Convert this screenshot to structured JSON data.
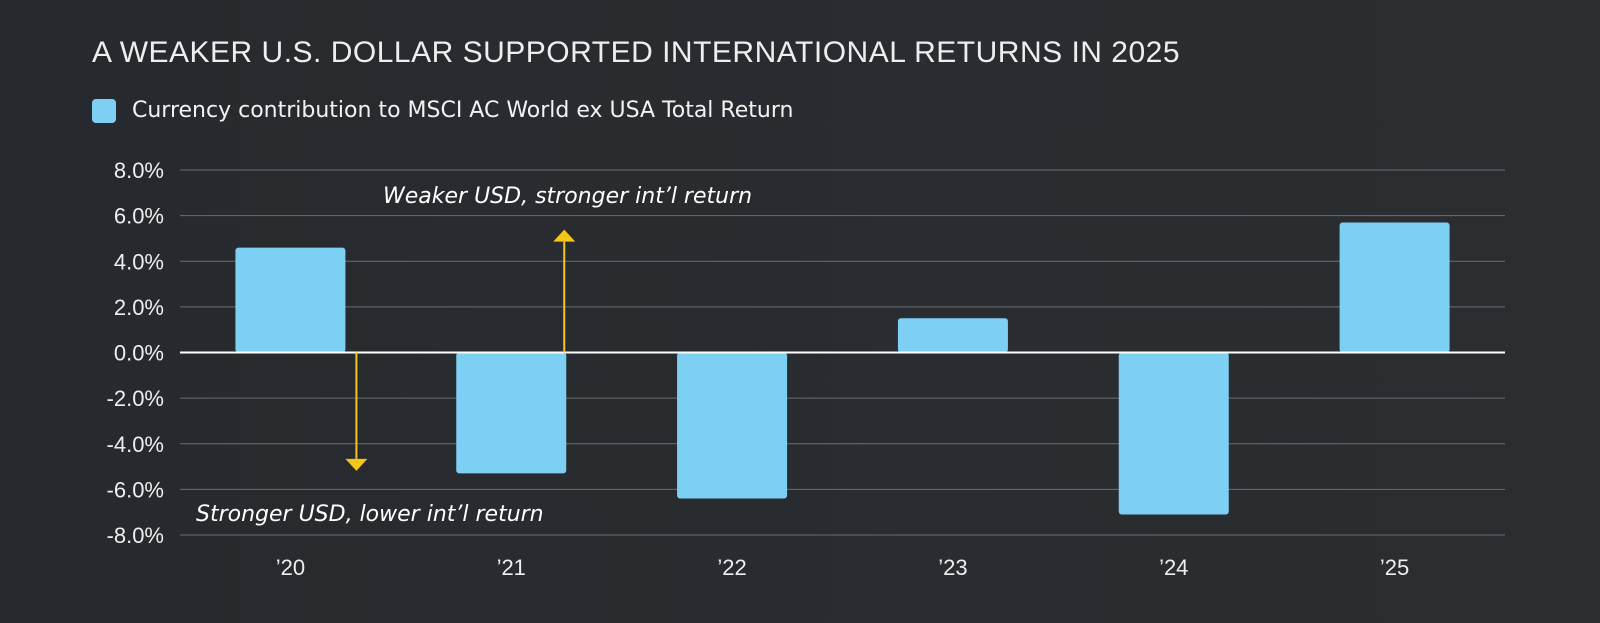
{
  "title": "A WEAKER U.S. DOLLAR SUPPORTED INTERNATIONAL RETURNS IN 2025",
  "colors": {
    "bar": "#7ecff4",
    "arrow": "#f5c518",
    "grid": "#6a6e72",
    "zero_line": "#ffffff"
  },
  "annotations": {
    "up": "Weaker USD, stronger int’l return",
    "down": "Stronger USD, lower int’l return"
  },
  "chart_data": {
    "type": "bar",
    "title": "A WEAKER U.S. DOLLAR SUPPORTED INTERNATIONAL RETURNS IN 2025",
    "categories": [
      "’20",
      "’21",
      "’22",
      "’23",
      "’24",
      "’25"
    ],
    "series": [
      {
        "name": "Currency contribution to MSCI AC World ex USA Total Return",
        "values": [
          4.6,
          -5.3,
          -6.4,
          1.5,
          -7.1,
          5.7
        ]
      }
    ],
    "ylim": [
      -8,
      8
    ],
    "yticks": [
      8,
      6,
      4,
      2,
      0,
      -2,
      -4,
      -6,
      -8
    ],
    "ytick_labels": [
      "8.0%",
      "6.0%",
      "4.0%",
      "2.0%",
      "0.0%",
      "-2.0%",
      "-4.0%",
      "-6.0%",
      "-8.0%"
    ],
    "grid": true,
    "legend_position": "top-left",
    "xlabel": "",
    "ylabel": ""
  }
}
